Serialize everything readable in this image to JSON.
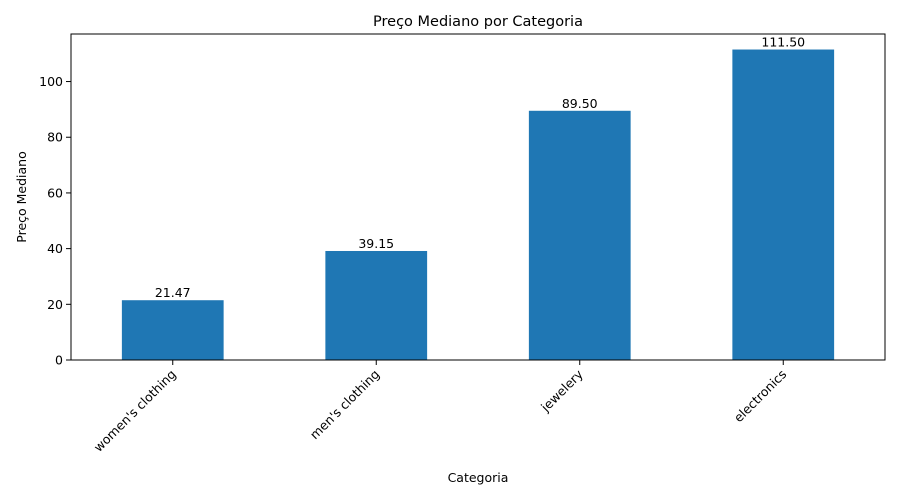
{
  "chart_data": {
    "type": "bar",
    "title": "Preço Mediano por Categoria",
    "xlabel": "Categoria",
    "ylabel": "Preço Mediano",
    "categories": [
      "women's clothing",
      "men's clothing",
      "jewelery",
      "electronics"
    ],
    "values": [
      21.47,
      39.15,
      89.5,
      111.5
    ],
    "data_labels": [
      "21.47",
      "39.15",
      "89.50",
      "111.50"
    ],
    "yticks": [
      0,
      20,
      40,
      60,
      80,
      100
    ],
    "ylim": [
      0,
      117.075
    ],
    "grid": false,
    "legend": "none",
    "bar_color": "#1f77b4"
  }
}
